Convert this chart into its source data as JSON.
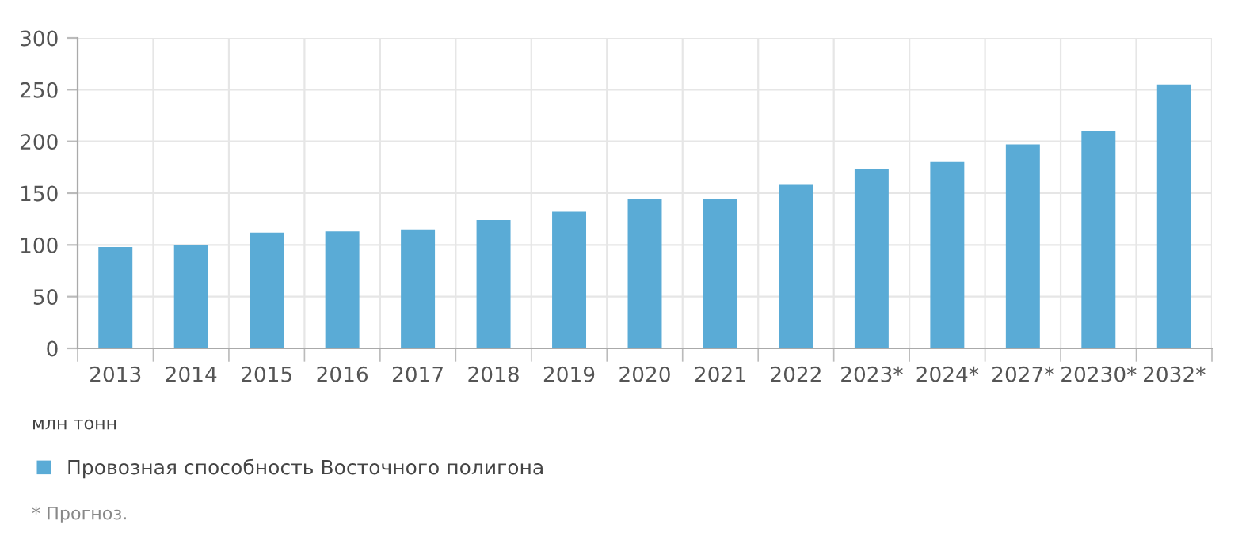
{
  "chart_data": {
    "type": "bar",
    "categories": [
      "2013",
      "2014",
      "2015",
      "2016",
      "2017",
      "2018",
      "2019",
      "2020",
      "2021",
      "2022",
      "2023*",
      "2024*",
      "2027*",
      "20230*",
      "2032*"
    ],
    "series": [
      {
        "name": "Провозная способность Восточного полигона",
        "color": "#5aabd6",
        "values": [
          98,
          100,
          112,
          113,
          115,
          124,
          132,
          144,
          144,
          158,
          173,
          180,
          197,
          210,
          255
        ]
      }
    ],
    "ylabel": "млн тонн",
    "ylim": [
      0,
      300
    ],
    "yticks": [
      0,
      50,
      100,
      150,
      200,
      250,
      300
    ],
    "grid": true,
    "legend": "bottom",
    "annotations": [
      "* Прогноз."
    ]
  }
}
